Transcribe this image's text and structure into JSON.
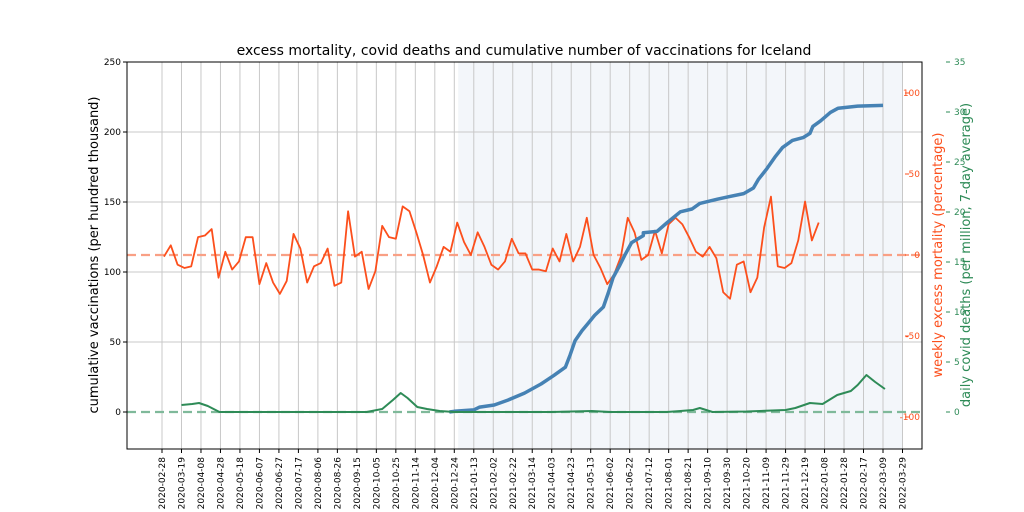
{
  "chart_data": {
    "type": "line",
    "title": "excess mortality, covid deaths and cumulative number of vaccinations for Iceland",
    "xlabel": "",
    "x_start_date": "2020-02-28",
    "x_end_date": "2022-03-29",
    "x_tick_labels": [
      "2020-02-28",
      "2020-03-19",
      "2020-04-08",
      "2020-04-28",
      "2020-05-18",
      "2020-06-07",
      "2020-06-27",
      "2020-07-17",
      "2020-08-06",
      "2020-08-26",
      "2020-09-15",
      "2020-10-05",
      "2020-10-25",
      "2020-11-14",
      "2020-12-04",
      "2020-12-24",
      "2021-01-13",
      "2021-02-02",
      "2021-02-22",
      "2021-03-14",
      "2021-04-03",
      "2021-04-23",
      "2021-05-13",
      "2021-06-02",
      "2021-06-22",
      "2021-07-12",
      "2021-08-01",
      "2021-08-21",
      "2021-09-10",
      "2021-09-30",
      "2021-10-20",
      "2021-11-09",
      "2021-11-29",
      "2021-12-19",
      "2022-01-08",
      "2022-01-28",
      "2022-02-17",
      "2022-03-09",
      "2022-03-29"
    ],
    "grid": true,
    "shaded_region": {
      "start_date": "2020-12-29",
      "end_date": "2022-03-29",
      "color": "#f3f6fa"
    },
    "axes": {
      "left": {
        "label": "cumulative vaccinations (per hundred thousand)",
        "ylim": [
          -25,
          250
        ],
        "ticks": [
          0,
          50,
          100,
          150,
          200,
          250
        ],
        "color": "#000000"
      },
      "right_orange": {
        "label": "weekly excess mortality (percentage)",
        "ylim": [
          -100,
          100
        ],
        "ticks": [
          -100,
          -50,
          0,
          50,
          100
        ],
        "color": "#fc4f1c"
      },
      "right_green": {
        "label": "daily covid deaths (per million, 7-day average)",
        "ylim": [
          0,
          35
        ],
        "ticks": [
          0,
          5,
          10,
          15,
          20,
          25,
          30,
          35
        ],
        "color": "#2e8b57"
      }
    },
    "reference_lines": [
      {
        "axis": "right_orange",
        "value": 0,
        "color": "#f9a085",
        "style": "dashed"
      },
      {
        "axis": "right_green",
        "value": 0,
        "color": "#7fb99a",
        "style": "dashed"
      }
    ],
    "series": [
      {
        "name": "weekly excess mortality",
        "axis": "right_orange",
        "color": "#fc4f1c",
        "start_day": 2,
        "step_days": 7,
        "values": [
          -1,
          6,
          -6,
          -8,
          -7,
          11,
          12,
          16,
          -14,
          2,
          -9,
          -4,
          11,
          11,
          -18,
          -5,
          -17,
          -24,
          -16,
          13,
          4,
          -17,
          -7,
          -5,
          4,
          -19,
          -17,
          27,
          -1,
          2,
          -21,
          -10,
          18,
          11,
          10,
          30,
          27,
          14,
          0,
          -17,
          -7,
          5,
          2,
          20,
          8,
          0,
          14,
          5,
          -6,
          -9,
          -4,
          10,
          1,
          1,
          -9,
          -9,
          -10,
          4,
          -4,
          13,
          -4,
          5,
          23,
          0,
          -8,
          -18,
          -12,
          -1,
          23,
          14,
          -3,
          0,
          15,
          1,
          19,
          23,
          19,
          11,
          2,
          -1,
          5,
          -2,
          -23,
          -27,
          -6,
          -4,
          -23,
          -14,
          17,
          36,
          -7,
          -8,
          -5,
          9,
          33,
          9,
          20
        ]
      },
      {
        "name": "cumulative vaccinations",
        "axis": "left",
        "color": "#4682b4",
        "points_day_value": [
          [
            295,
            0
          ],
          [
            300,
            0.5
          ],
          [
            320,
            1.5
          ],
          [
            326,
            3.5
          ],
          [
            341,
            5
          ],
          [
            355,
            8.5
          ],
          [
            372,
            13.5
          ],
          [
            389,
            20
          ],
          [
            402,
            26
          ],
          [
            414,
            32
          ],
          [
            419,
            41
          ],
          [
            424,
            51
          ],
          [
            431,
            58
          ],
          [
            437,
            63
          ],
          [
            444,
            69
          ],
          [
            453,
            75
          ],
          [
            458,
            85
          ],
          [
            463,
            96
          ],
          [
            470,
            105
          ],
          [
            475,
            112
          ],
          [
            482,
            121
          ],
          [
            494,
            126
          ],
          [
            494,
            127
          ],
          [
            494,
            128
          ],
          [
            508,
            129
          ],
          [
            518,
            135
          ],
          [
            532,
            143
          ],
          [
            544,
            145
          ],
          [
            552,
            149
          ],
          [
            570,
            152
          ],
          [
            583,
            154
          ],
          [
            597,
            156
          ],
          [
            607,
            160
          ],
          [
            612,
            166
          ],
          [
            621,
            174
          ],
          [
            629,
            182
          ],
          [
            637,
            189
          ],
          [
            647,
            194
          ],
          [
            658,
            196
          ],
          [
            665,
            199
          ],
          [
            668,
            204
          ],
          [
            676,
            208
          ],
          [
            686,
            214
          ],
          [
            694,
            217
          ],
          [
            714,
            218.5
          ],
          [
            740,
            219
          ]
        ]
      },
      {
        "name": "daily covid deaths",
        "axis": "right_green",
        "color": "#2e8b57",
        "points_day_value": [
          [
            20,
            0.7
          ],
          [
            31,
            0.8
          ],
          [
            38,
            0.9
          ],
          [
            47,
            0.6
          ],
          [
            59,
            0
          ],
          [
            100,
            0
          ],
          [
            150,
            0
          ],
          [
            200,
            0
          ],
          [
            210,
            0
          ],
          [
            226,
            0.3
          ],
          [
            237,
            1.2
          ],
          [
            245,
            1.9
          ],
          [
            252,
            1.4
          ],
          [
            262,
            0.5
          ],
          [
            272,
            0.3
          ],
          [
            285,
            0.1
          ],
          [
            300,
            0
          ],
          [
            350,
            0
          ],
          [
            400,
            0
          ],
          [
            441,
            0.1
          ],
          [
            460,
            0
          ],
          [
            518,
            0
          ],
          [
            532,
            0.1
          ],
          [
            552,
            0.4
          ],
          [
            545,
            0.2
          ],
          [
            565,
            0
          ],
          [
            600,
            0.05
          ],
          [
            640,
            0.2
          ],
          [
            650,
            0.4
          ],
          [
            665,
            0.9
          ],
          [
            678,
            0.8
          ],
          [
            693,
            1.7
          ],
          [
            707,
            2.1
          ],
          [
            714,
            2.7
          ],
          [
            723,
            3.7
          ],
          [
            732,
            3.0
          ],
          [
            742,
            2.3
          ]
        ]
      }
    ]
  }
}
